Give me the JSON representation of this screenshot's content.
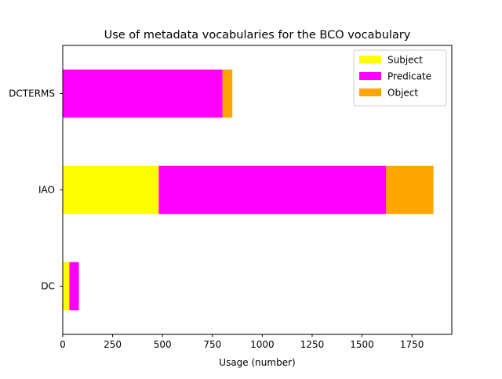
{
  "chart_data": {
    "type": "bar",
    "orientation": "horizontal",
    "stacked": true,
    "title": "Use of metadata vocabularies for the BCO vocabulary",
    "xlabel": "Usage (number)",
    "ylabel": "",
    "categories": [
      "DC",
      "IAO",
      "DCTERMS"
    ],
    "series": [
      {
        "name": "Subject",
        "color": "#ffff00",
        "values": [
          33,
          481,
          0
        ]
      },
      {
        "name": "Predicate",
        "color": "#ff00ff",
        "values": [
          48,
          1140,
          800
        ]
      },
      {
        "name": "Object",
        "color": "#ffa500",
        "values": [
          0,
          237,
          50
        ]
      }
    ],
    "xlim": [
      0,
      1950
    ],
    "xticks": [
      0,
      250,
      500,
      750,
      1000,
      1250,
      1500,
      1750
    ],
    "grid": false,
    "legend_position": "top-right"
  }
}
